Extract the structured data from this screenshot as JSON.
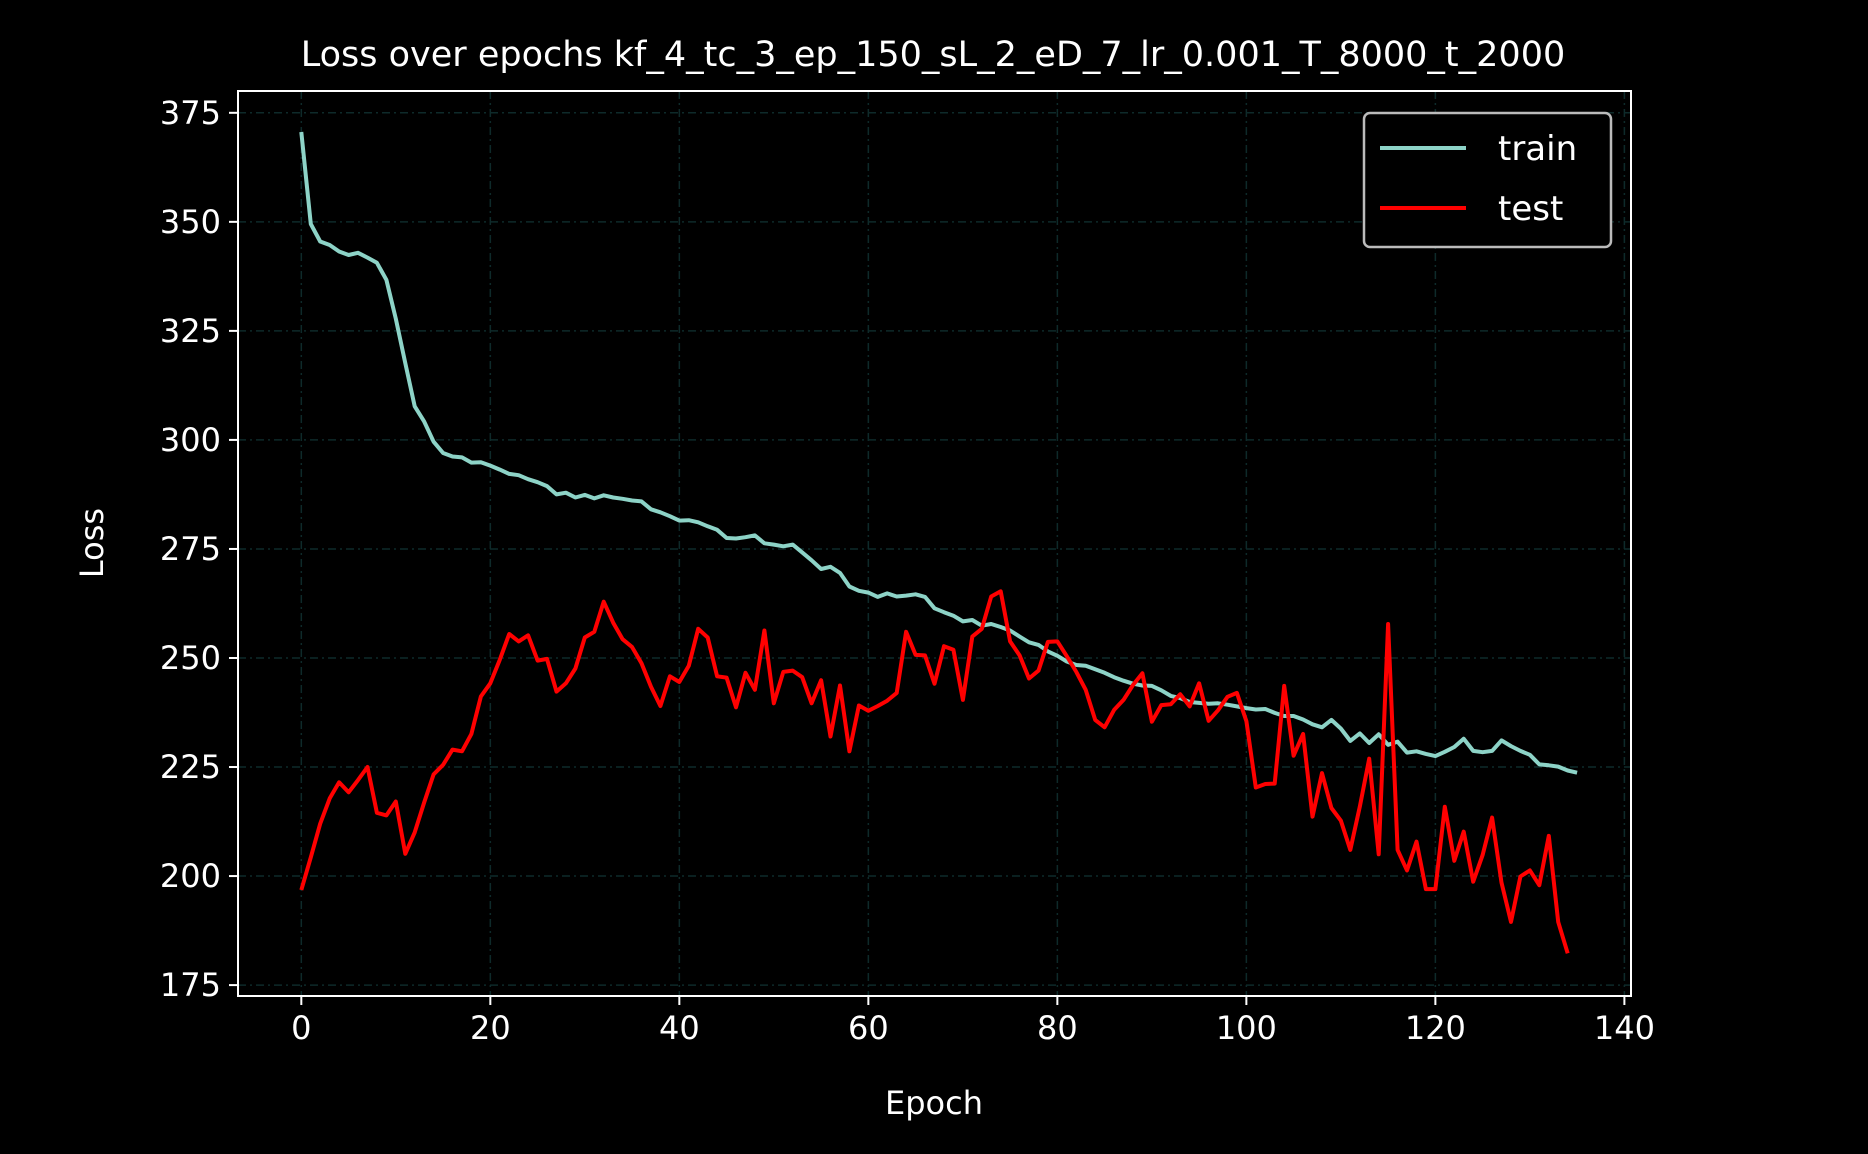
{
  "chart_data": {
    "type": "line",
    "title": "Loss over epochs kf_4_tc_3_ep_150_sL_2_eD_7_lr_0.001_T_8000_t_2000",
    "xlabel": "Epoch",
    "ylabel": "Loss",
    "xlim": [
      -6.7,
      140.7
    ],
    "ylim": [
      172.5,
      380
    ],
    "xticks": [
      0,
      20,
      40,
      60,
      80,
      100,
      120,
      140
    ],
    "yticks": [
      175,
      200,
      225,
      250,
      275,
      300,
      325,
      350,
      375
    ],
    "grid": true,
    "legend_position": "top-right",
    "background": "#000000",
    "series": [
      {
        "name": "train",
        "color": "#8dd3c7",
        "values": [
          370.6,
          349.5,
          345.5,
          344.7,
          343.2,
          342.4,
          342.9,
          341.8,
          340.6,
          336.7,
          327.8,
          317.6,
          307.7,
          304.2,
          299.6,
          297.0,
          296.2,
          296.0,
          294.8,
          294.9,
          294.1,
          293.2,
          292.2,
          291.9,
          291.0,
          290.3,
          289.4,
          287.5,
          287.9,
          286.8,
          287.4,
          286.6,
          287.3,
          286.8,
          286.5,
          286.1,
          285.9,
          284.1,
          283.4,
          282.5,
          281.5,
          281.6,
          281.1,
          280.2,
          279.4,
          277.5,
          277.4,
          277.7,
          278.1,
          276.3,
          276.0,
          275.6,
          276.0,
          274.2,
          272.4,
          270.4,
          270.9,
          269.5,
          266.4,
          265.4,
          265.0,
          264.0,
          264.8,
          264.1,
          264.3,
          264.6,
          264.0,
          261.4,
          260.5,
          259.7,
          258.4,
          258.7,
          257.4,
          257.8,
          257.1,
          256.3,
          254.9,
          253.6,
          253.0,
          251.5,
          250.5,
          249.2,
          248.4,
          248.2,
          247.4,
          246.6,
          245.6,
          244.8,
          244.1,
          243.7,
          243.6,
          242.6,
          241.3,
          240.8,
          239.9,
          239.7,
          239.5,
          239.6,
          239.3,
          238.9,
          238.5,
          238.2,
          238.3,
          237.4,
          236.7,
          236.7,
          235.9,
          234.8,
          234.1,
          235.8,
          233.8,
          231.0,
          232.7,
          230.5,
          232.5,
          230.1,
          230.8,
          228.3,
          228.6,
          228.0,
          227.5,
          228.5,
          229.6,
          231.5,
          228.7,
          228.4,
          228.7,
          231.1,
          229.8,
          228.7,
          227.8,
          225.6,
          225.4,
          225.1,
          224.2,
          223.7
        ]
      },
      {
        "name": "test",
        "color": "#ff0000",
        "values": [
          196.8,
          204.3,
          212.0,
          217.8,
          221.5,
          219.2,
          222.0,
          225.0,
          214.5,
          213.9,
          217.1,
          205.1,
          210.0,
          216.9,
          223.3,
          225.5,
          229.0,
          228.6,
          232.6,
          241.2,
          244.2,
          249.6,
          255.5,
          253.8,
          255.2,
          249.4,
          249.8,
          242.3,
          244.2,
          247.6,
          254.7,
          256.0,
          262.9,
          258.1,
          254.3,
          252.5,
          248.8,
          243.4,
          239.0,
          245.8,
          244.5,
          248.2,
          256.7,
          254.7,
          245.8,
          245.5,
          238.7,
          246.6,
          242.7,
          256.3,
          239.6,
          246.8,
          247.1,
          245.6,
          239.6,
          244.9,
          232.0,
          243.7,
          228.6,
          239.1,
          237.9,
          239.0,
          240.2,
          242.0,
          256.0,
          250.7,
          250.6,
          244.1,
          252.7,
          251.9,
          240.4,
          254.9,
          256.7,
          264.1,
          265.3,
          253.8,
          250.6,
          245.3,
          247.1,
          253.7,
          253.8,
          250.4,
          246.8,
          242.7,
          235.8,
          234.1,
          238.1,
          240.4,
          243.8,
          246.5,
          235.4,
          239.2,
          239.4,
          241.7,
          238.9,
          244.2,
          235.6,
          238.0,
          241.1,
          242.0,
          235.5,
          220.3,
          221.1,
          221.2,
          243.6,
          227.6,
          232.6,
          213.6,
          223.6,
          215.6,
          212.7,
          206.0,
          215.9,
          226.9,
          205.0,
          257.8,
          206.0,
          201.3,
          207.9,
          197.0,
          197.0,
          215.9,
          203.5,
          210.2,
          198.7,
          204.8,
          213.4,
          198.5,
          189.5,
          199.9,
          201.3,
          197.9,
          209.2,
          189.5,
          182.3
        ]
      }
    ]
  }
}
